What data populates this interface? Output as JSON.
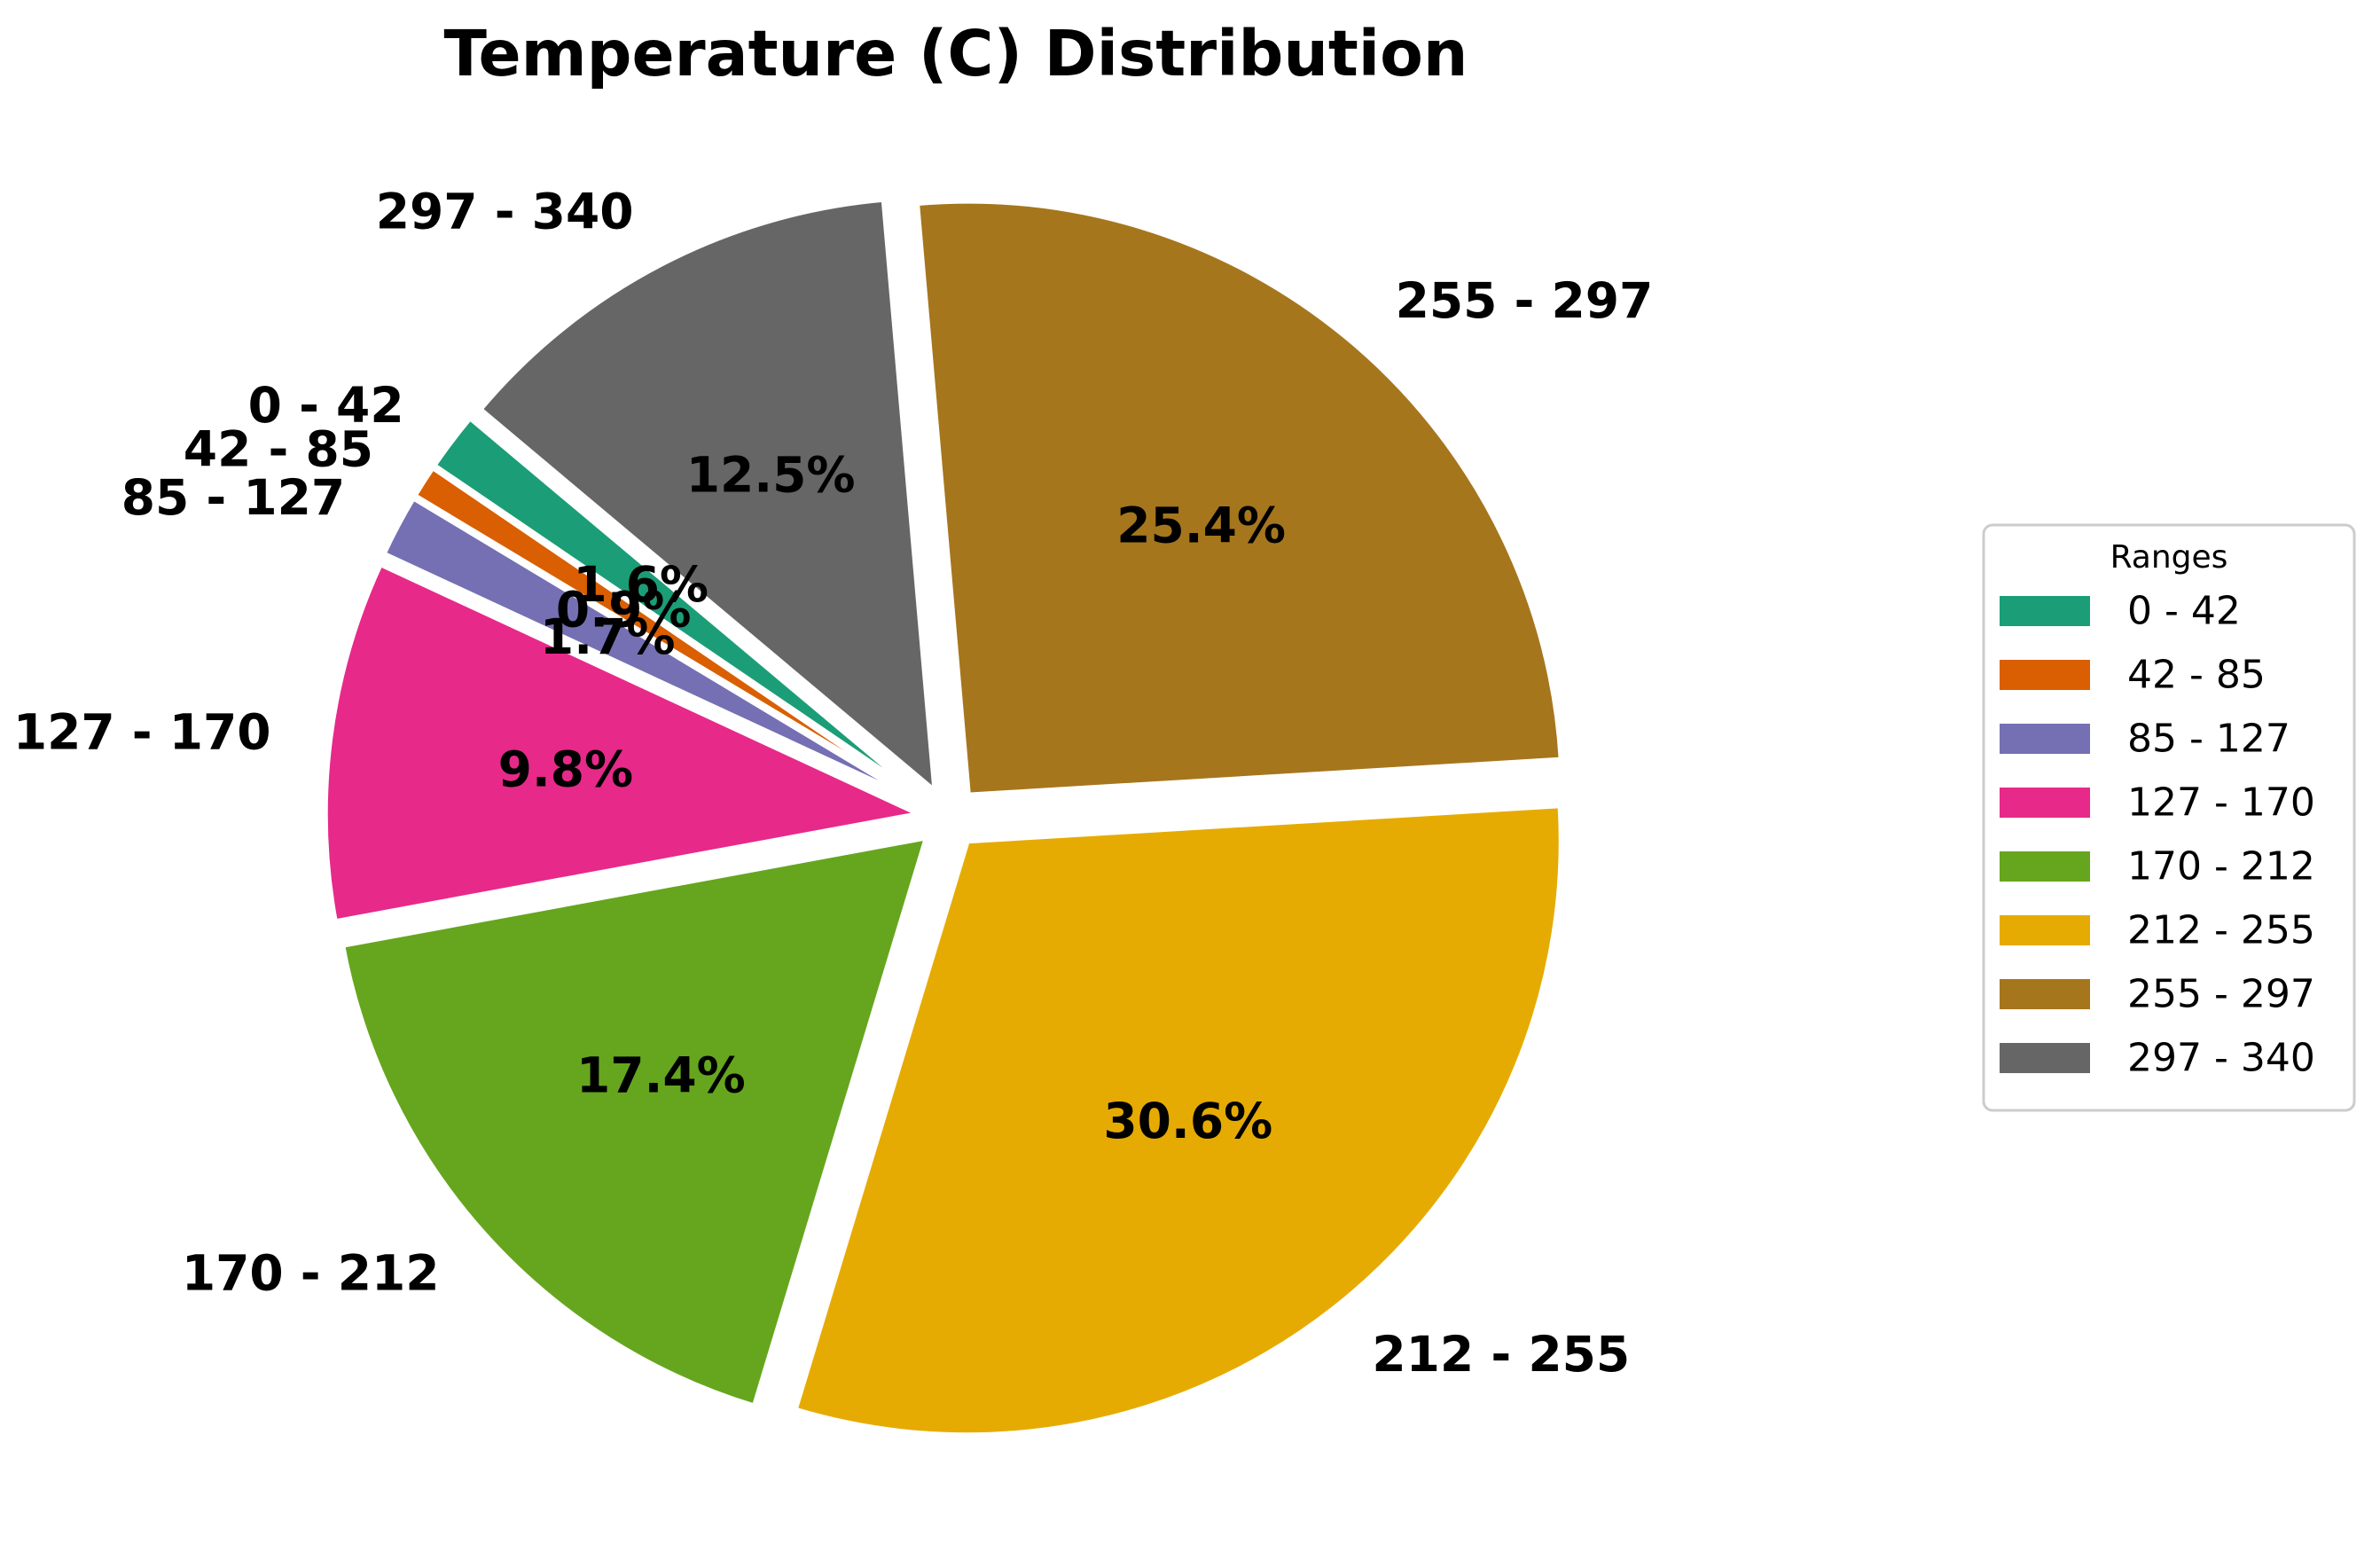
{
  "chart_data": {
    "type": "pie",
    "title": "Temperature (C) Distribution",
    "categories": [
      "0 - 42",
      "42 - 85",
      "85 - 127",
      "127 - 170",
      "170 - 212",
      "212 - 255",
      "255 - 297",
      "297 - 340"
    ],
    "values": [
      1.6,
      0.9,
      1.7,
      9.8,
      17.4,
      30.6,
      25.4,
      12.5
    ],
    "percent_labels": [
      "1.6%",
      "0.9%",
      "1.7%",
      "9.8%",
      "17.4%",
      "30.6%",
      "25.4%",
      "12.5%"
    ],
    "colors": [
      "#1b9e77",
      "#d95f02",
      "#7570b3",
      "#e7298a",
      "#66a61e",
      "#e6ab02",
      "#a6761d",
      "#666666"
    ],
    "start_angle_deg": 140,
    "direction": "counterclockwise",
    "legend": {
      "title": "Ranges",
      "placement": "center-right",
      "entries": [
        "0 - 42",
        "42 - 85",
        "85 - 127",
        "127 - 170",
        "170 - 212",
        "212 - 255",
        "255 - 297",
        "297 - 340"
      ]
    }
  }
}
